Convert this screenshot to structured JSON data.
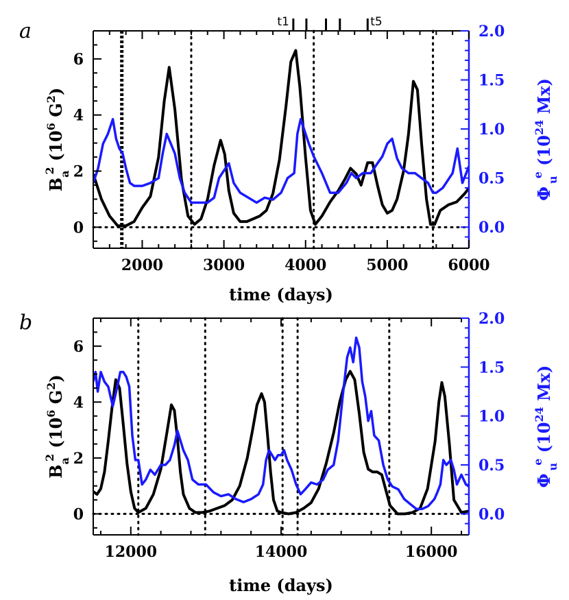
{
  "colors": {
    "black_series": "#000000",
    "blue_series": "#1a1aff",
    "right_axis": "#1a1aff"
  },
  "markers": {
    "labels": [
      {
        "text": "t1",
        "x": 3850
      },
      {
        "text": "t5",
        "x": 4760
      }
    ],
    "ticks": [
      3850,
      4010,
      4250,
      4420,
      4760
    ]
  },
  "chart_data": [
    {
      "type": "line",
      "panel_label": "a",
      "xlabel": "time (days)",
      "ylabel_left": {
        "base": "B",
        "sup": "2",
        "sub": "a",
        "rest": " (10",
        "unit_sup": "6",
        "unit": " G",
        "unit_sup2": "2",
        "close": ")"
      },
      "ylabel_right": {
        "base": "Φ",
        "sup": "e",
        "sub": "u",
        "rest": " (10",
        "unit_sup": "24",
        "unit": " Mx)"
      },
      "xlim": [
        1400,
        6000
      ],
      "ylim_left": [
        -0.75,
        7.0
      ],
      "ylim_right": [
        -0.215,
        2.0
      ],
      "xticks": [
        2000,
        3000,
        4000,
        5000,
        6000
      ],
      "yticks_left": [
        0,
        2,
        4,
        6
      ],
      "yticks_right": [
        "0.0",
        "0.5",
        "1.0",
        "1.5",
        "2.0"
      ],
      "vlines": [
        1750,
        2600,
        4100,
        5560
      ],
      "thick_vline": 1750,
      "hline": 0,
      "series": [
        {
          "axis": "left",
          "x": [
            1400,
            1500,
            1600,
            1700,
            1800,
            1900,
            2000,
            2100,
            2200,
            2270,
            2330,
            2400,
            2480,
            2560,
            2640,
            2720,
            2800,
            2880,
            2960,
            3010,
            3060,
            3120,
            3200,
            3280,
            3360,
            3440,
            3520,
            3600,
            3680,
            3760,
            3820,
            3880,
            3930,
            4000,
            4060,
            4120,
            4200,
            4300,
            4400,
            4480,
            4550,
            4620,
            4680,
            4760,
            4820,
            4880,
            4940,
            5000,
            5060,
            5120,
            5200,
            5260,
            5320,
            5370,
            5420,
            5480,
            5530,
            5580,
            5650,
            5750,
            5850,
            5950,
            6000
          ],
          "y": [
            1.9,
            1.0,
            0.4,
            0.05,
            0.05,
            0.2,
            0.7,
            1.1,
            2.5,
            4.5,
            5.7,
            4.2,
            1.7,
            0.4,
            0.1,
            0.3,
            1.0,
            2.2,
            3.1,
            2.6,
            1.3,
            0.5,
            0.2,
            0.2,
            0.3,
            0.4,
            0.6,
            1.2,
            2.4,
            4.3,
            5.9,
            6.3,
            5.0,
            2.5,
            0.6,
            0.1,
            0.4,
            0.9,
            1.3,
            1.7,
            2.1,
            1.9,
            1.5,
            2.3,
            2.3,
            1.5,
            0.8,
            0.5,
            0.6,
            1.0,
            2.0,
            3.3,
            5.2,
            4.9,
            3.0,
            1.0,
            0.1,
            0.1,
            0.6,
            0.8,
            0.9,
            1.2,
            1.4
          ]
        },
        {
          "axis": "right",
          "x": [
            1400,
            1460,
            1520,
            1580,
            1640,
            1680,
            1720,
            1760,
            1800,
            1850,
            1900,
            2000,
            2100,
            2200,
            2250,
            2300,
            2350,
            2400,
            2460,
            2520,
            2600,
            2700,
            2800,
            2880,
            2940,
            2980,
            3060,
            3120,
            3200,
            3300,
            3400,
            3500,
            3600,
            3700,
            3780,
            3860,
            3900,
            3940,
            3980,
            4040,
            4100,
            4200,
            4300,
            4400,
            4500,
            4560,
            4620,
            4700,
            4800,
            4880,
            4940,
            5000,
            5060,
            5120,
            5180,
            5260,
            5340,
            5420,
            5500,
            5560,
            5600,
            5680,
            5760,
            5800,
            5860,
            5920,
            6000
          ],
          "y": [
            0.45,
            0.6,
            0.85,
            0.95,
            1.1,
            0.9,
            0.8,
            0.75,
            0.6,
            0.45,
            0.42,
            0.42,
            0.45,
            0.5,
            0.75,
            0.95,
            0.85,
            0.75,
            0.5,
            0.35,
            0.25,
            0.25,
            0.25,
            0.3,
            0.5,
            0.55,
            0.65,
            0.45,
            0.35,
            0.3,
            0.25,
            0.3,
            0.28,
            0.35,
            0.5,
            0.55,
            0.95,
            1.1,
            1.0,
            0.85,
            0.72,
            0.55,
            0.35,
            0.35,
            0.45,
            0.55,
            0.5,
            0.55,
            0.55,
            0.65,
            0.72,
            0.85,
            0.9,
            0.7,
            0.6,
            0.55,
            0.55,
            0.5,
            0.45,
            0.35,
            0.35,
            0.4,
            0.5,
            0.55,
            0.8,
            0.45,
            0.62
          ]
        }
      ]
    },
    {
      "type": "line",
      "panel_label": "b",
      "xlabel": "time (days)",
      "ylabel_left": {
        "base": "B",
        "sup": "2",
        "sub": "a",
        "rest": " (10",
        "unit_sup": "6",
        "unit": " G",
        "unit_sup2": "2",
        "close": ")"
      },
      "ylabel_right": {
        "base": "Φ",
        "sup": "e",
        "sub": "u",
        "rest": " (10",
        "unit_sup": "24",
        "unit": " Mx)"
      },
      "xlim": [
        11500,
        16500
      ],
      "ylim_left": [
        -0.75,
        7.0
      ],
      "ylim_right": [
        -0.215,
        2.0
      ],
      "xticks": [
        12000,
        14000,
        16000
      ],
      "yticks_left": [
        0,
        2,
        4,
        6
      ],
      "yticks_right": [
        "0.0",
        "0.5",
        "1.0",
        "1.5",
        "2.0"
      ],
      "vlines": [
        12100,
        12990,
        14020,
        14220,
        15440
      ],
      "thick_vline": null,
      "hline": 0,
      "series": [
        {
          "axis": "left",
          "x": [
            11500,
            11550,
            11600,
            11650,
            11700,
            11750,
            11800,
            11850,
            11900,
            11950,
            12000,
            12050,
            12100,
            12200,
            12300,
            12400,
            12480,
            12540,
            12580,
            12620,
            12660,
            12700,
            12780,
            12860,
            12950,
            13050,
            13150,
            13250,
            13350,
            13450,
            13550,
            13620,
            13680,
            13740,
            13780,
            13820,
            13860,
            13900,
            13950,
            14000,
            14100,
            14200,
            14300,
            14400,
            14500,
            14600,
            14700,
            14780,
            14860,
            14920,
            14980,
            15040,
            15100,
            15160,
            15220,
            15280,
            15340,
            15400,
            15450,
            15550,
            15650,
            15750,
            15850,
            15950,
            16050,
            16100,
            16140,
            16180,
            16240,
            16300,
            16400,
            16500
          ],
          "y": [
            0.8,
            0.7,
            0.9,
            1.5,
            2.6,
            3.8,
            4.8,
            4.5,
            3.2,
            1.8,
            0.8,
            0.2,
            0.05,
            0.2,
            0.7,
            1.6,
            2.9,
            3.9,
            3.7,
            2.7,
            1.5,
            0.7,
            0.2,
            0.05,
            0.05,
            0.1,
            0.2,
            0.3,
            0.5,
            1.0,
            2.0,
            3.0,
            3.9,
            4.3,
            4.0,
            2.8,
            1.5,
            0.5,
            0.1,
            0.05,
            0.0,
            0.05,
            0.2,
            0.4,
            0.9,
            1.8,
            2.9,
            4.0,
            4.8,
            5.1,
            4.8,
            3.6,
            2.2,
            1.6,
            1.5,
            1.5,
            1.4,
            0.8,
            0.3,
            0.0,
            0.0,
            0.05,
            0.2,
            0.9,
            2.6,
            4.0,
            4.7,
            4.2,
            2.5,
            0.5,
            0.05,
            0.1
          ]
        },
        {
          "axis": "right",
          "x": [
            11500,
            11530,
            11560,
            11600,
            11650,
            11700,
            11760,
            11820,
            11860,
            11900,
            11940,
            11980,
            12020,
            12060,
            12100,
            12150,
            12200,
            12260,
            12320,
            12400,
            12460,
            12520,
            12580,
            12620,
            12660,
            12700,
            12760,
            12820,
            12900,
            13000,
            13100,
            13200,
            13300,
            13400,
            13500,
            13600,
            13700,
            13760,
            13800,
            13840,
            13880,
            13920,
            13960,
            14000,
            14040,
            14080,
            14140,
            14200,
            14260,
            14320,
            14400,
            14480,
            14560,
            14620,
            14700,
            14760,
            14820,
            14880,
            14920,
            14960,
            15000,
            15040,
            15080,
            15120,
            15160,
            15200,
            15240,
            15300,
            15360,
            15420,
            15480,
            15560,
            15640,
            15720,
            15800,
            15880,
            15960,
            16040,
            16080,
            16120,
            16160,
            16200,
            16260,
            16300,
            16340,
            16400,
            16460,
            16500
          ],
          "y": [
            1.35,
            1.45,
            1.25,
            1.45,
            1.35,
            1.3,
            1.1,
            1.3,
            1.45,
            1.45,
            1.4,
            1.3,
            0.8,
            0.55,
            0.55,
            0.3,
            0.35,
            0.45,
            0.4,
            0.5,
            0.5,
            0.55,
            0.7,
            0.85,
            0.75,
            0.65,
            0.55,
            0.35,
            0.3,
            0.3,
            0.22,
            0.18,
            0.2,
            0.15,
            0.12,
            0.15,
            0.2,
            0.3,
            0.55,
            0.65,
            0.6,
            0.55,
            0.6,
            0.6,
            0.65,
            0.55,
            0.45,
            0.3,
            0.2,
            0.25,
            0.32,
            0.3,
            0.35,
            0.45,
            0.5,
            0.75,
            1.2,
            1.6,
            1.7,
            1.55,
            1.8,
            1.7,
            1.35,
            1.2,
            0.95,
            1.05,
            0.8,
            0.75,
            0.5,
            0.35,
            0.28,
            0.25,
            0.15,
            0.1,
            0.05,
            0.05,
            0.08,
            0.15,
            0.22,
            0.3,
            0.55,
            0.5,
            0.55,
            0.45,
            0.3,
            0.4,
            0.3,
            0.28
          ]
        }
      ]
    }
  ]
}
